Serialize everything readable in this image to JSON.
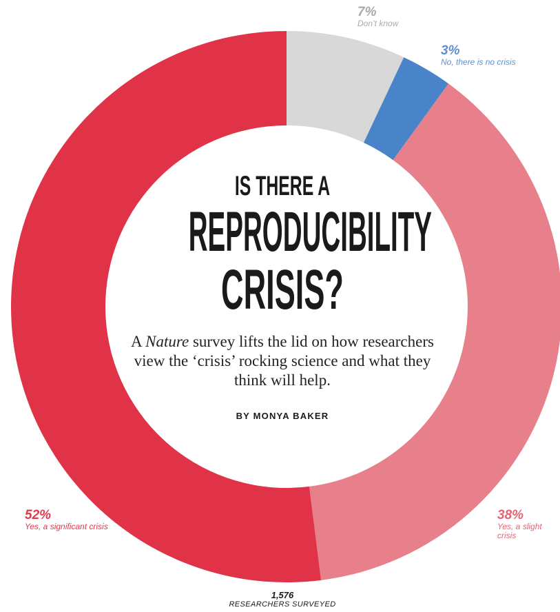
{
  "title_line1": "IS THERE A",
  "title_line2": "REPRODUCIBILITY",
  "title_line3": "CRISIS?",
  "dek_pre": "A ",
  "dek_italic": "Nature",
  "dek_post": " survey lifts the lid on how researchers view the ‘crisis’ rocking science and what they think will help.",
  "byline": "BY MONYA BAKER",
  "total_value": "1,576",
  "total_label": "RESEARCHERS SURVEYED",
  "chart_data": {
    "type": "pie",
    "variant": "donut",
    "start": "top, clockwise",
    "slices": [
      {
        "value": 7,
        "label": "7%",
        "caption": "Don’t know",
        "color": "#d8d8d8"
      },
      {
        "value": 3,
        "label": "3%",
        "caption": "No, there is no crisis",
        "color": "#4a84c8"
      },
      {
        "value": 38,
        "label": "38%",
        "caption": "Yes, a slight crisis",
        "color": "#e8808c"
      },
      {
        "value": 52,
        "label": "52%",
        "caption": "Yes, a significant crisis",
        "color": "#e03347"
      }
    ]
  }
}
